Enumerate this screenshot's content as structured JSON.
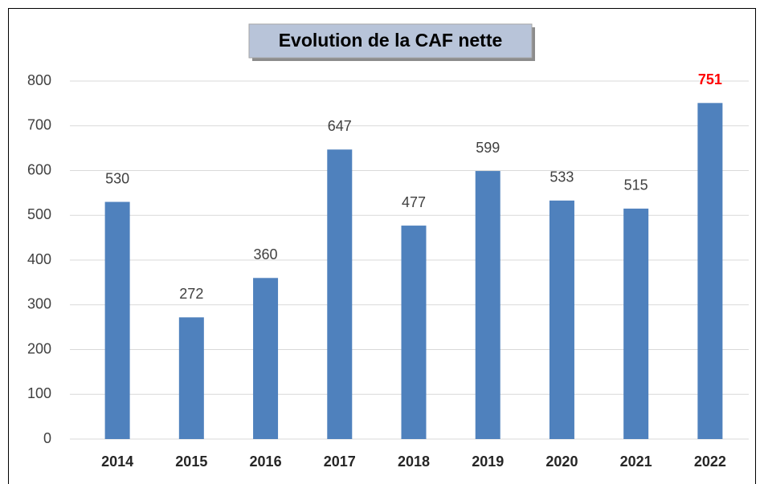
{
  "chart_data": {
    "type": "bar",
    "title": "Evolution de la CAF nette",
    "categories": [
      "2014",
      "2015",
      "2016",
      "2017",
      "2018",
      "2019",
      "2020",
      "2021",
      "2022"
    ],
    "values": [
      530,
      272,
      360,
      647,
      477,
      599,
      533,
      515,
      751
    ],
    "color": "#4f81bd",
    "ylim": [
      0,
      800
    ],
    "yticks": [
      0,
      100,
      200,
      300,
      400,
      500,
      600,
      700,
      800
    ],
    "grid": true,
    "highlight_index": 8,
    "highlight_color": "#ff0000"
  }
}
